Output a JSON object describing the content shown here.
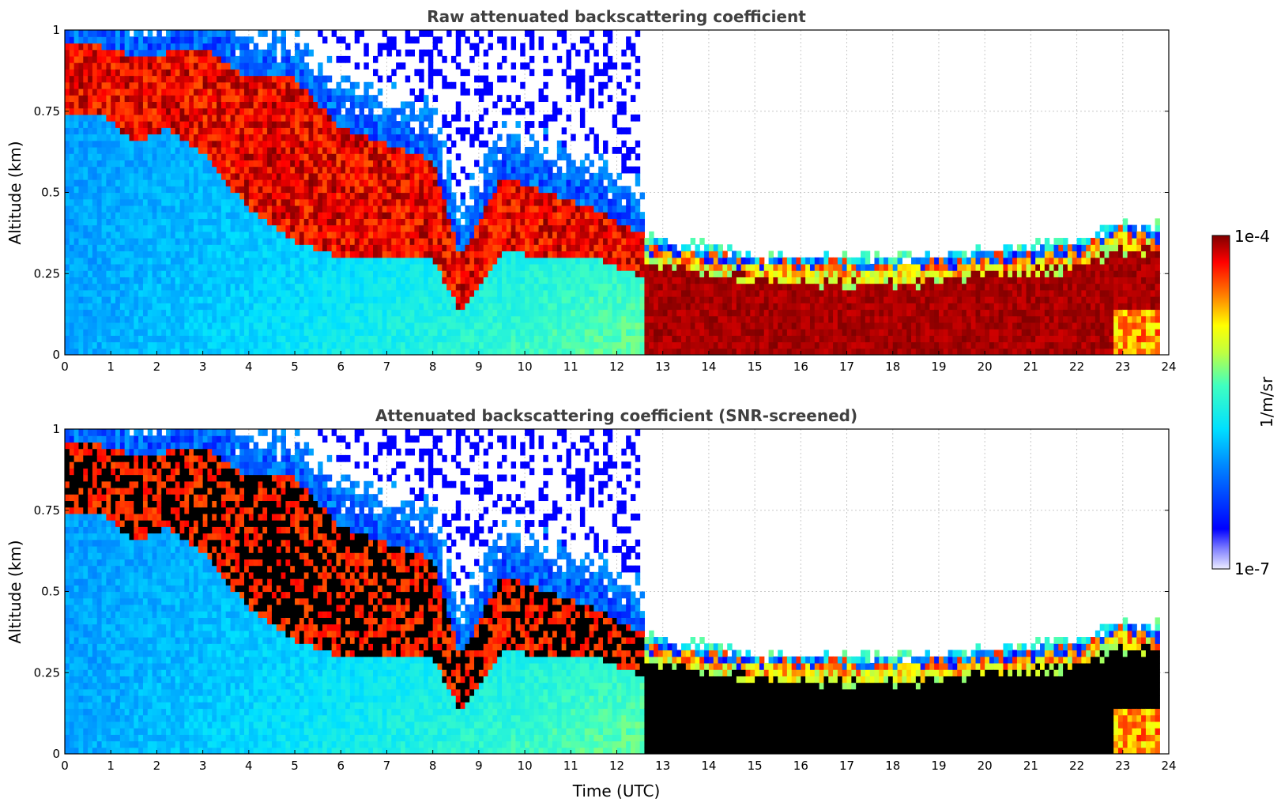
{
  "chart_data": [
    {
      "type": "heatmap",
      "title": "Raw attenuated backscattering coefficient",
      "xlabel": "",
      "ylabel": "Altitude (km)",
      "xlim": [
        0,
        24
      ],
      "ylim": [
        0,
        1
      ],
      "xticks": [
        "0",
        "1",
        "2",
        "3",
        "4",
        "5",
        "6",
        "7",
        "8",
        "9",
        "10",
        "11",
        "12",
        "13",
        "14",
        "15",
        "16",
        "17",
        "18",
        "19",
        "20",
        "21",
        "22",
        "23",
        "24"
      ],
      "yticks": [
        "0",
        "0.25",
        "0.5",
        "0.75",
        "1"
      ],
      "grid": true,
      "data_end_hour": 23.8,
      "features": {
        "cloud_layer_tops_km": [
          {
            "t": 0.8,
            "top": 0.95,
            "base": 0.75
          },
          {
            "t": 1.5,
            "top": 0.92,
            "base": 0.65
          },
          {
            "t": 2.2,
            "top": 0.93,
            "base": 0.7
          },
          {
            "t": 3.0,
            "top": 0.95,
            "base": 0.62
          },
          {
            "t": 4.0,
            "top": 0.85,
            "base": 0.45
          },
          {
            "t": 5.0,
            "top": 0.85,
            "base": 0.35
          },
          {
            "t": 6.0,
            "top": 0.7,
            "base": 0.3
          },
          {
            "t": 7.0,
            "top": 0.65,
            "base": 0.3
          },
          {
            "t": 8.0,
            "top": 0.6,
            "base": 0.3
          },
          {
            "t": 8.6,
            "top": 0.3,
            "base": 0.13
          },
          {
            "t": 9.5,
            "top": 0.55,
            "base": 0.32
          },
          {
            "t": 10.5,
            "top": 0.5,
            "base": 0.3
          },
          {
            "t": 11.5,
            "top": 0.45,
            "base": 0.3
          },
          {
            "t": 12.4,
            "top": 0.38,
            "base": 0.25
          }
        ],
        "boundary_layer": [
          {
            "t": 12.7,
            "top": 0.33
          },
          {
            "t": 15.0,
            "top": 0.28
          },
          {
            "t": 18.0,
            "top": 0.27
          },
          {
            "t": 20.0,
            "top": 0.29
          },
          {
            "t": 22.0,
            "top": 0.32
          },
          {
            "t": 23.0,
            "top": 0.38
          },
          {
            "t": 23.8,
            "top": 0.36
          }
        ]
      }
    },
    {
      "type": "heatmap",
      "title": "Attenuated backscattering coefficient (SNR-screened)",
      "xlabel": "Time (UTC)",
      "ylabel": "Altitude (km)",
      "xlim": [
        0,
        24
      ],
      "ylim": [
        0,
        1
      ],
      "xticks": [
        "0",
        "1",
        "2",
        "3",
        "4",
        "5",
        "6",
        "7",
        "8",
        "9",
        "10",
        "11",
        "12",
        "13",
        "14",
        "15",
        "16",
        "17",
        "18",
        "19",
        "20",
        "21",
        "22",
        "23",
        "24"
      ],
      "yticks": [
        "0",
        "0.25",
        "0.5",
        "0.75",
        "1"
      ],
      "grid": true,
      "data_end_hour": 23.8,
      "saturated_color": "#000000"
    }
  ],
  "colorbar": {
    "label": "1/m/sr",
    "max_label": "1e-4",
    "min_label": "1e-7",
    "scale": "log",
    "range": [
      1e-07,
      0.0001
    ],
    "colormap": "jet",
    "low_color": "#e8e8ff"
  }
}
